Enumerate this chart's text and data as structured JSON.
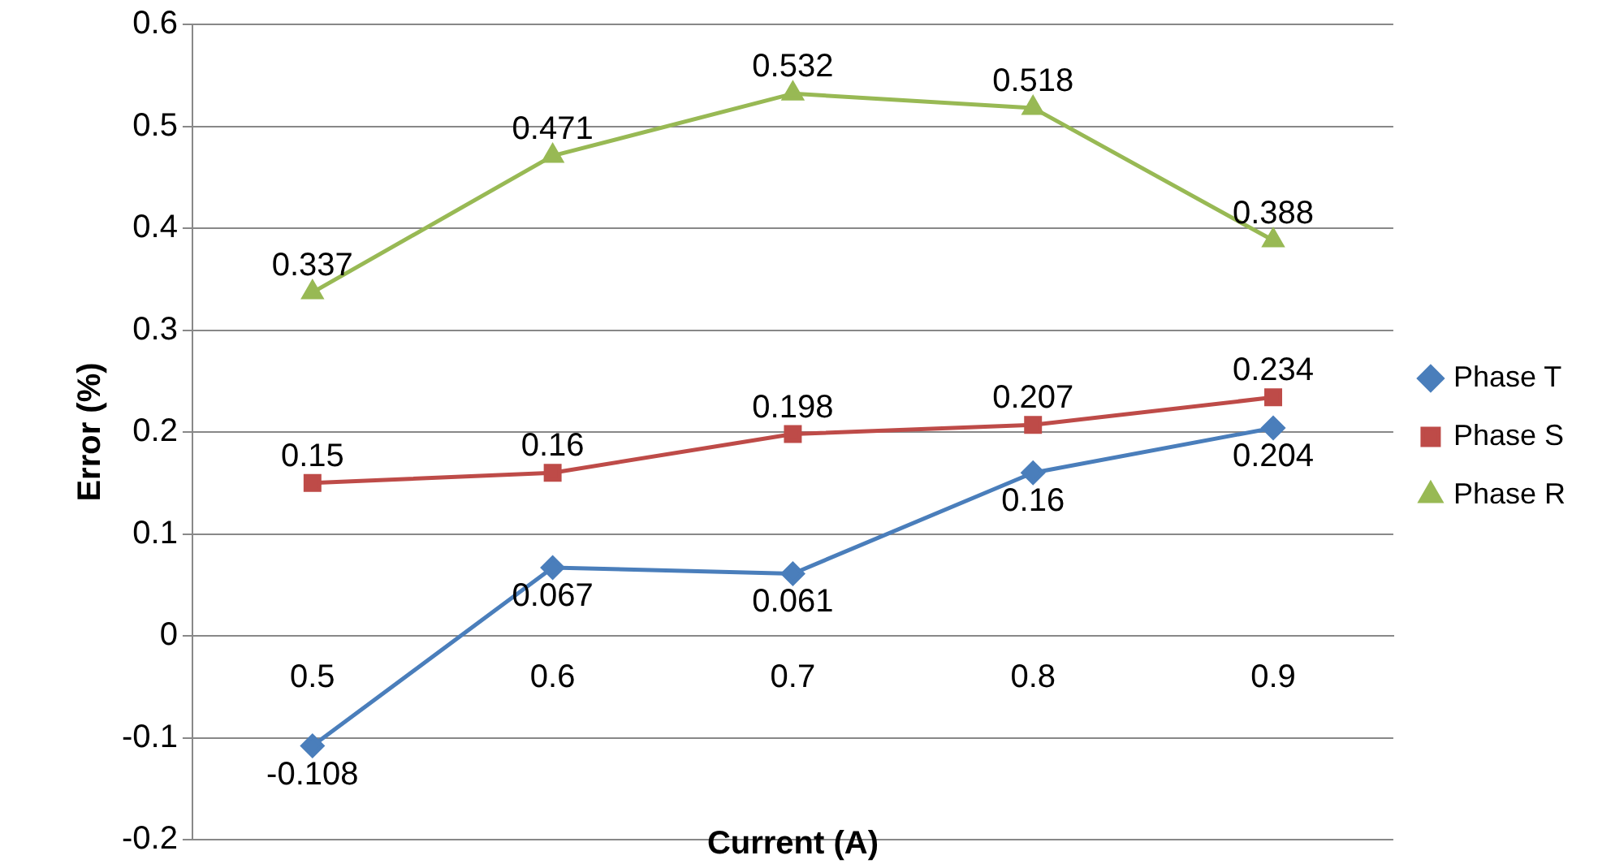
{
  "chart_data": {
    "type": "line",
    "xlabel": "Current (A)",
    "ylabel": "Error (%)",
    "categories": [
      "0.5",
      "0.6",
      "0.7",
      "0.8",
      "0.9"
    ],
    "series": [
      {
        "name": "Phase T",
        "color": "#4a7ebb",
        "marker": "diamond",
        "values": [
          -0.108,
          0.067,
          0.061,
          0.16,
          0.204
        ]
      },
      {
        "name": "Phase S",
        "color": "#be4b48",
        "marker": "square",
        "values": [
          0.15,
          0.16,
          0.198,
          0.207,
          0.234
        ]
      },
      {
        "name": "Phase R",
        "color": "#98b954",
        "marker": "triangle",
        "values": [
          0.337,
          0.471,
          0.532,
          0.518,
          0.388
        ]
      }
    ],
    "ylim": [
      -0.2,
      0.6
    ],
    "yticks": [
      -0.2,
      -0.1,
      0,
      0.1,
      0.2,
      0.3,
      0.4,
      0.5,
      0.6
    ],
    "grid": "y",
    "legend": "right",
    "data_labels": true,
    "line_style": "solid"
  }
}
